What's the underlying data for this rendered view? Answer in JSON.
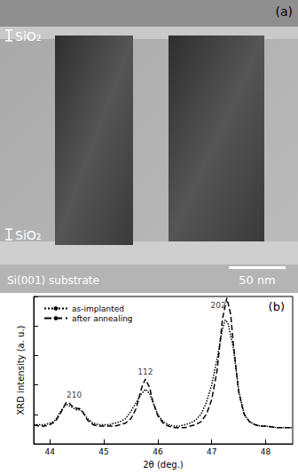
{
  "panel_a": {
    "label": "(a)",
    "layer_labels": [
      "SiO₂",
      "SiO₂"
    ],
    "substrate_label": "Si(001) substrate",
    "scale_bar": "50 nm"
  },
  "chart_data": {
    "type": "line",
    "title": "(b)",
    "x_label": "2θ (deg.)",
    "y_label": "XRD intensity (a. u.)",
    "xlim": [
      43.7,
      48.5
    ],
    "xticks": [
      44,
      45,
      46,
      47,
      48
    ],
    "ylim": [
      0,
      10
    ],
    "yticks": [
      0,
      2,
      4,
      6,
      8,
      10
    ],
    "tick_labels": "x",
    "legend": "upper left",
    "series": [
      {
        "name": "as-implanted",
        "color": "#000000",
        "line_style": "dotted",
        "x": [
          43.7,
          43.8,
          43.9,
          44.0,
          44.1,
          44.2,
          44.3,
          44.4,
          44.5,
          44.55,
          44.6,
          44.7,
          44.8,
          44.9,
          45.0,
          45.1,
          45.2,
          45.3,
          45.4,
          45.5,
          45.6,
          45.7,
          45.77,
          45.85,
          45.9,
          46.0,
          46.1,
          46.2,
          46.3,
          46.4,
          46.5,
          46.6,
          46.7,
          46.8,
          46.9,
          47.0,
          47.1,
          47.2,
          47.25,
          47.3,
          47.4,
          47.5,
          47.6,
          47.7,
          47.8,
          47.9,
          48.0,
          48.2,
          48.5
        ],
        "values": [
          1.3,
          1.3,
          1.3,
          1.4,
          1.6,
          2.2,
          2.7,
          2.5,
          2.3,
          2.3,
          2.2,
          1.7,
          1.4,
          1.3,
          1.3,
          1.3,
          1.4,
          1.5,
          1.7,
          2.2,
          2.8,
          3.4,
          3.7,
          3.4,
          2.9,
          2.0,
          1.5,
          1.3,
          1.2,
          1.2,
          1.3,
          1.4,
          1.6,
          2.0,
          2.8,
          4.0,
          5.8,
          7.8,
          8.4,
          8.2,
          6.5,
          3.6,
          2.0,
          1.5,
          1.3,
          1.2,
          1.2,
          1.1,
          1.1
        ]
      },
      {
        "name": "after annealing",
        "color": "#000000",
        "line_style": "dashed",
        "x": [
          43.7,
          43.8,
          43.9,
          44.0,
          44.1,
          44.2,
          44.3,
          44.35,
          44.4,
          44.5,
          44.55,
          44.6,
          44.7,
          44.8,
          44.9,
          45.0,
          45.1,
          45.2,
          45.3,
          45.4,
          45.5,
          45.6,
          45.7,
          45.77,
          45.85,
          45.9,
          46.0,
          46.1,
          46.2,
          46.3,
          46.4,
          46.5,
          46.6,
          46.7,
          46.8,
          46.9,
          47.0,
          47.1,
          47.2,
          47.28,
          47.35,
          47.4,
          47.5,
          47.6,
          47.7,
          47.8,
          47.9,
          48.0,
          48.2,
          48.5
        ],
        "values": [
          1.3,
          1.2,
          1.2,
          1.3,
          1.5,
          2.1,
          2.8,
          2.8,
          2.6,
          2.4,
          2.4,
          2.2,
          1.6,
          1.3,
          1.2,
          1.2,
          1.2,
          1.2,
          1.3,
          1.4,
          1.7,
          2.4,
          3.8,
          4.4,
          3.8,
          3.0,
          1.9,
          1.4,
          1.2,
          1.1,
          1.1,
          1.1,
          1.2,
          1.3,
          1.5,
          2.0,
          3.0,
          5.0,
          8.5,
          9.9,
          8.8,
          6.8,
          3.5,
          2.0,
          1.5,
          1.3,
          1.2,
          1.2,
          1.1,
          1.1
        ]
      }
    ],
    "annotations": [
      {
        "text": "210",
        "x": 44.45,
        "y": 2.9
      },
      {
        "text": "112",
        "x": 45.77,
        "y": 4.5
      },
      {
        "text": "202",
        "x": 47.12,
        "y": 9.0
      }
    ]
  }
}
